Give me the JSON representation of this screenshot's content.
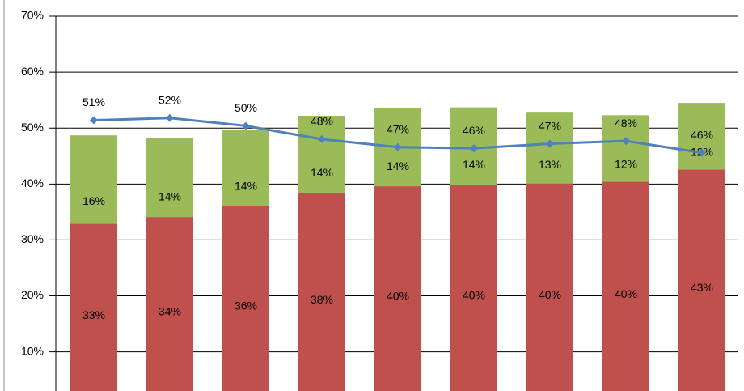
{
  "chart_data": {
    "type": "bar",
    "stacked": true,
    "ylim": [
      3,
      70
    ],
    "yticks": [
      {
        "value": 10,
        "label": "10%"
      },
      {
        "value": 20,
        "label": "20%"
      },
      {
        "value": 30,
        "label": "30%"
      },
      {
        "value": 40,
        "label": "40%"
      },
      {
        "value": 50,
        "label": "50%"
      },
      {
        "value": 60,
        "label": "60%"
      },
      {
        "value": 70,
        "label": "70%"
      }
    ],
    "grid": true,
    "series": [
      {
        "type": "bar",
        "color": "#c0504d",
        "values": [
          32.9,
          34.1,
          36.1,
          38.4,
          39.6,
          39.9,
          40.1,
          40.4,
          42.6
        ],
        "value_labels": [
          "33%",
          "34%",
          "36%",
          "38%",
          "40%",
          "40%",
          "40%",
          "40%",
          "43%"
        ]
      },
      {
        "type": "bar",
        "color": "#9bbb59",
        "values": [
          15.8,
          14.1,
          13.6,
          13.8,
          13.9,
          13.8,
          12.8,
          11.9,
          11.9
        ],
        "value_labels": [
          "16%",
          "14%",
          "14%",
          "14%",
          "14%",
          "14%",
          "13%",
          "12%",
          "12%"
        ]
      },
      {
        "type": "line",
        "color": "#4f81bd",
        "values": [
          51.4,
          51.8,
          50.4,
          48.0,
          46.6,
          46.4,
          47.2,
          47.7,
          45.6
        ],
        "value_labels": [
          "51%",
          "52%",
          "50%",
          "48%",
          "47%",
          "46%",
          "47%",
          "48%",
          "46%"
        ]
      }
    ]
  }
}
